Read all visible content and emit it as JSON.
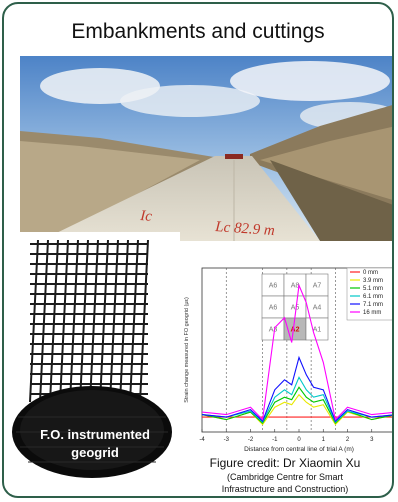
{
  "title": "Embankments and cuttings",
  "road_photo": {
    "annotation": "Lc 82.9 m"
  },
  "geogrid_photo": {
    "label_line1": "F.O. instrumented",
    "label_line2": "geogrid"
  },
  "credit": {
    "line1": "Figure credit: Dr Xiaomin Xu",
    "line2": "(Cambridge Centre for Smart",
    "line3": "Infrastructure and Construction)"
  },
  "chart_data": {
    "type": "line",
    "xlabel": "Distance from central line of trial A (m)",
    "ylabel": "Strain change measured in FO geogrid (με)",
    "xlim": [
      -4,
      4
    ],
    "ylim": [
      -30,
      300
    ],
    "xticks": [
      "-4",
      "-3",
      "-2",
      "-1",
      "0",
      "1",
      "2",
      "3",
      "4"
    ],
    "grid": false,
    "legend_position": "top-right",
    "inset_grid": [
      [
        "A6",
        "A8",
        "A7"
      ],
      [
        "A6",
        "A5",
        "A4"
      ],
      [
        "A3",
        "A2",
        "A1"
      ]
    ],
    "inset_highlight": "A2",
    "series": [
      {
        "name": "0 mm",
        "color": "#ff2020",
        "x": [
          -4,
          -3,
          -2,
          -1.5,
          -1,
          -0.6,
          -0.3,
          0,
          0.3,
          0.6,
          1,
          1.5,
          2,
          3,
          4
        ],
        "y": [
          0,
          0,
          0,
          0,
          0,
          0,
          0,
          0,
          0,
          0,
          0,
          0,
          0,
          0,
          0
        ]
      },
      {
        "name": "3.9 mm",
        "color": "#e8e800",
        "x": [
          -4,
          -3,
          -2,
          -1.5,
          -1,
          -0.6,
          -0.3,
          0,
          0.3,
          0.6,
          1,
          1.5,
          2,
          3,
          4
        ],
        "y": [
          5,
          -5,
          10,
          -15,
          20,
          30,
          25,
          45,
          30,
          20,
          25,
          -15,
          10,
          -5,
          5
        ]
      },
      {
        "name": "5.1 mm",
        "color": "#00c800",
        "x": [
          -4,
          -3,
          -2,
          -1.5,
          -1,
          -0.6,
          -0.3,
          0,
          0.3,
          0.6,
          1,
          1.5,
          2,
          3,
          4
        ],
        "y": [
          5,
          -5,
          10,
          -12,
          30,
          40,
          35,
          60,
          40,
          30,
          35,
          -12,
          12,
          -5,
          5
        ]
      },
      {
        "name": "6.1 mm",
        "color": "#00c8c8",
        "x": [
          -4,
          -3,
          -2,
          -1.5,
          -1,
          -0.6,
          -0.3,
          0,
          0.3,
          0.6,
          1,
          1.5,
          2,
          3,
          4
        ],
        "y": [
          5,
          0,
          12,
          -10,
          40,
          55,
          45,
          80,
          55,
          40,
          45,
          -10,
          12,
          0,
          5
        ]
      },
      {
        "name": "7.1 mm",
        "color": "#1010ff",
        "x": [
          -4,
          -3,
          -2,
          -1.5,
          -1,
          -0.6,
          -0.3,
          0,
          0.3,
          0.6,
          1,
          1.5,
          2,
          3,
          4
        ],
        "y": [
          5,
          0,
          15,
          -8,
          55,
          75,
          65,
          120,
          85,
          60,
          55,
          -8,
          15,
          0,
          5
        ]
      },
      {
        "name": "16 mm",
        "color": "#ff00ff",
        "x": [
          -4,
          -3,
          -2,
          -1.5,
          -1,
          -0.6,
          -0.3,
          0,
          0.3,
          0.6,
          1,
          1.5,
          2,
          3,
          4
        ],
        "y": [
          10,
          5,
          20,
          -5,
          180,
          200,
          150,
          265,
          230,
          170,
          110,
          -5,
          20,
          5,
          10
        ]
      }
    ]
  }
}
